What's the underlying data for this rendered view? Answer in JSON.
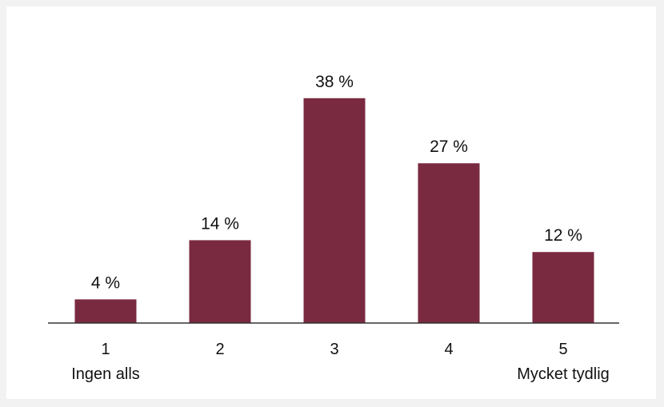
{
  "chart_data": {
    "type": "bar",
    "title": "",
    "xlabel": "",
    "ylabel": "",
    "categories": [
      "1",
      "2",
      "3",
      "4",
      "5"
    ],
    "category_sublabels": [
      "Ingen alls",
      "",
      "",
      "",
      "Mycket tydlig"
    ],
    "values": [
      4,
      14,
      38,
      27,
      12
    ],
    "value_labels": [
      "4 %",
      "14 %",
      "38 %",
      "27 %",
      "12 %"
    ],
    "unit": "%",
    "ylim": [
      0,
      40
    ],
    "grid": false,
    "legend": "none",
    "bar_color": "#7a2a40",
    "axis_color": "#333333"
  }
}
